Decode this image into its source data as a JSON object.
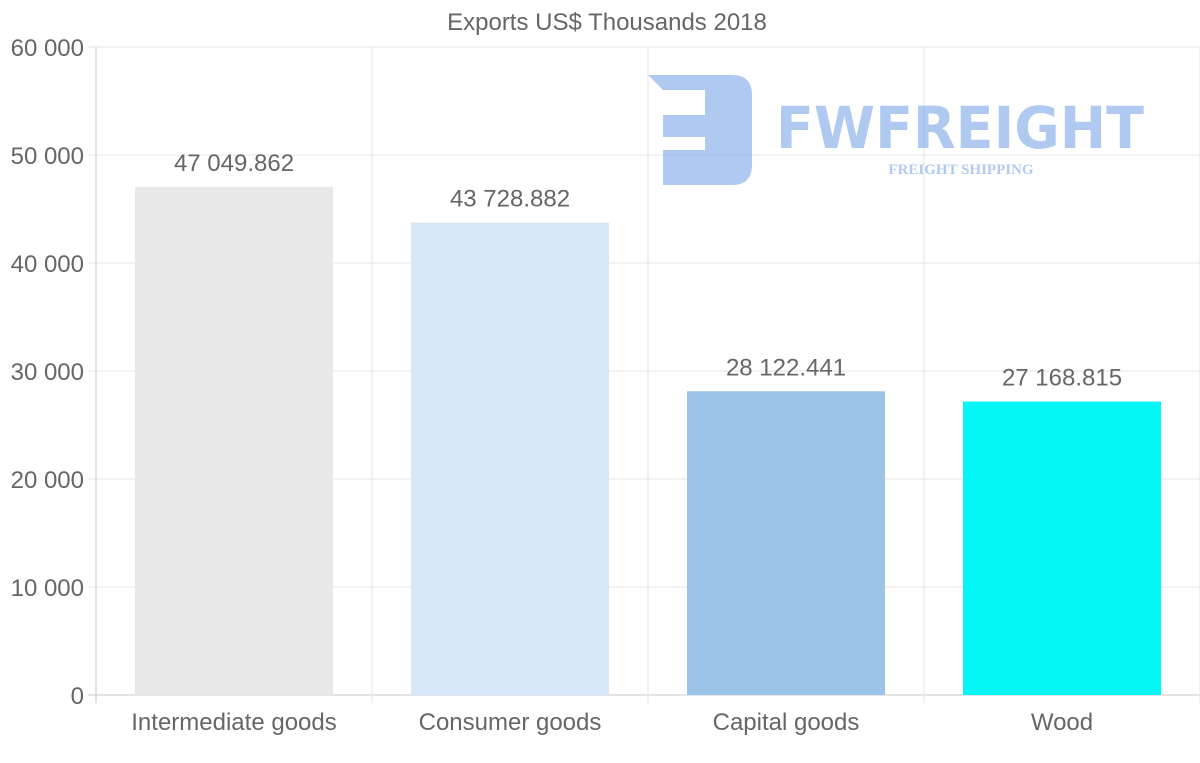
{
  "chart_data": {
    "type": "bar",
    "title": "Exports US$ Thousands 2018",
    "categories": [
      "Intermediate goods",
      "Consumer goods",
      "Capital goods",
      "Wood"
    ],
    "values": [
      47049.862,
      43728.882,
      28122.441,
      27168.815
    ],
    "value_labels": [
      "47 049.862",
      "43 728.882",
      "28 122.441",
      "27 168.815"
    ],
    "colors": [
      "#e8e8e8",
      "#d7e7f8",
      "#9bc4e8",
      "#05f6f6"
    ],
    "ylim": [
      0,
      60000
    ],
    "yticks": [
      0,
      10000,
      20000,
      30000,
      40000,
      50000,
      60000
    ],
    "ytick_labels": [
      "0",
      "10 000",
      "20 000",
      "30 000",
      "40 000",
      "50 000",
      "60 000"
    ],
    "xlabel": "",
    "ylabel": "",
    "grid": true,
    "legend": "none"
  },
  "watermark": {
    "brand": "FWFREIGHT",
    "tagline": "FREIGHT SHIPPING"
  }
}
